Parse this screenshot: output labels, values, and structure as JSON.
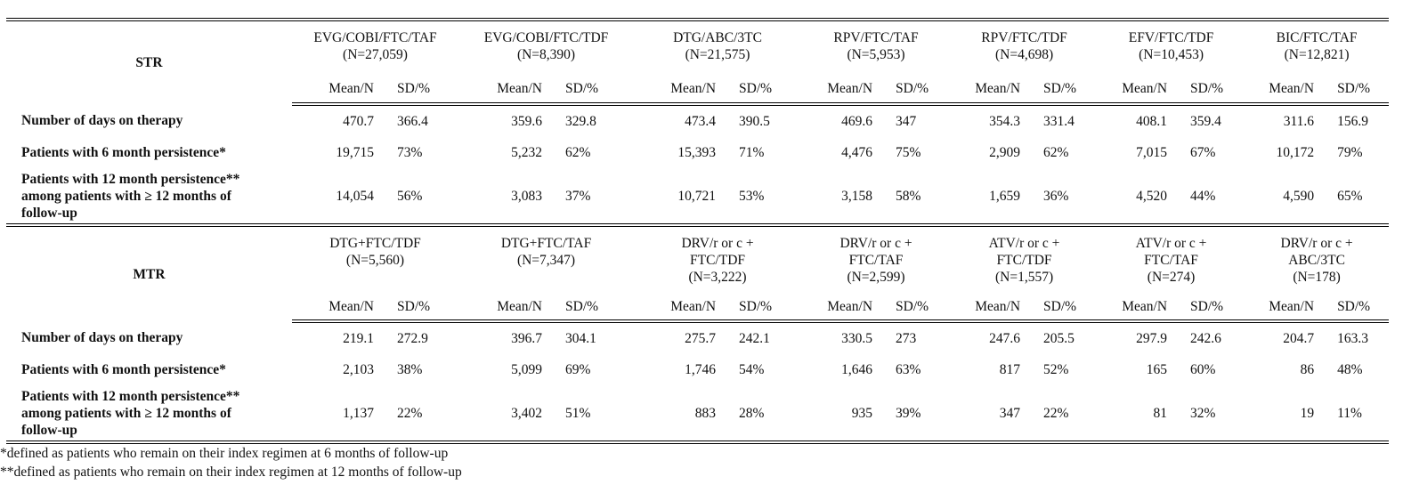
{
  "sub_headers": {
    "mean": "Mean/N",
    "sd": "SD/%"
  },
  "row_labels": [
    "Number of days on therapy",
    "Patients with 6 month persistence*",
    "Patients with 12 month persistence** among patients with ≥ 12 months of follow-up"
  ],
  "sections": [
    {
      "title": "STR",
      "groups": [
        {
          "name": "EVG/COBI/FTC/TAF",
          "n": "(N=27,059)"
        },
        {
          "name": "EVG/COBI/FTC/TDF",
          "n": "(N=8,390)"
        },
        {
          "name": "DTG/ABC/3TC",
          "n": "(N=21,575)"
        },
        {
          "name": "RPV/FTC/TAF",
          "n": "(N=5,953)"
        },
        {
          "name": "RPV/FTC/TDF",
          "n": "(N=4,698)"
        },
        {
          "name": "EFV/FTC/TDF",
          "n": "(N=10,453)"
        },
        {
          "name": "BIC/FTC/TAF",
          "n": "(N=12,821)"
        }
      ],
      "rows": [
        [
          [
            "470.7",
            "366.4"
          ],
          [
            "359.6",
            "329.8"
          ],
          [
            "473.4",
            "390.5"
          ],
          [
            "469.6",
            "347"
          ],
          [
            "354.3",
            "331.4"
          ],
          [
            "408.1",
            "359.4"
          ],
          [
            "311.6",
            "156.9"
          ]
        ],
        [
          [
            "19,715",
            "73%"
          ],
          [
            "5,232",
            "62%"
          ],
          [
            "15,393",
            "71%"
          ],
          [
            "4,476",
            "75%"
          ],
          [
            "2,909",
            "62%"
          ],
          [
            "7,015",
            "67%"
          ],
          [
            "10,172",
            "79%"
          ]
        ],
        [
          [
            "14,054",
            "56%"
          ],
          [
            "3,083",
            "37%"
          ],
          [
            "10,721",
            "53%"
          ],
          [
            "3,158",
            "58%"
          ],
          [
            "1,659",
            "36%"
          ],
          [
            "4,520",
            "44%"
          ],
          [
            "4,590",
            "65%"
          ]
        ]
      ]
    },
    {
      "title": "MTR",
      "groups": [
        {
          "name": "DTG+FTC/TDF",
          "n": "(N=5,560)"
        },
        {
          "name": "DTG+FTC/TAF",
          "n": "(N=7,347)"
        },
        {
          "name": "DRV/r or c + FTC/TDF",
          "n": "(N=3,222)"
        },
        {
          "name": "DRV/r or c + FTC/TAF",
          "n": "(N=2,599)"
        },
        {
          "name": "ATV/r or c + FTC/TDF",
          "n": "(N=1,557)"
        },
        {
          "name": "ATV/r or c + FTC/TAF",
          "n": "(N=274)"
        },
        {
          "name": "DRV/r or c + ABC/3TC",
          "n": "(N=178)"
        }
      ],
      "rows": [
        [
          [
            "219.1",
            "272.9"
          ],
          [
            "396.7",
            "304.1"
          ],
          [
            "275.7",
            "242.1"
          ],
          [
            "330.5",
            "273"
          ],
          [
            "247.6",
            "205.5"
          ],
          [
            "297.9",
            "242.6"
          ],
          [
            "204.7",
            "163.3"
          ]
        ],
        [
          [
            "2,103",
            "38%"
          ],
          [
            "5,099",
            "69%"
          ],
          [
            "1,746",
            "54%"
          ],
          [
            "1,646",
            "63%"
          ],
          [
            "817",
            "52%"
          ],
          [
            "165",
            "60%"
          ],
          [
            "86",
            "48%"
          ]
        ],
        [
          [
            "1,137",
            "22%"
          ],
          [
            "3,402",
            "51%"
          ],
          [
            "883",
            "28%"
          ],
          [
            "935",
            "39%"
          ],
          [
            "347",
            "22%"
          ],
          [
            "81",
            "32%"
          ],
          [
            "19",
            "11%"
          ]
        ]
      ]
    }
  ],
  "footnotes": [
    "*defined as patients who remain on their index regimen at 6 months of follow-up",
    "**defined as patients who remain on their index regimen at 12 months of follow-up"
  ]
}
